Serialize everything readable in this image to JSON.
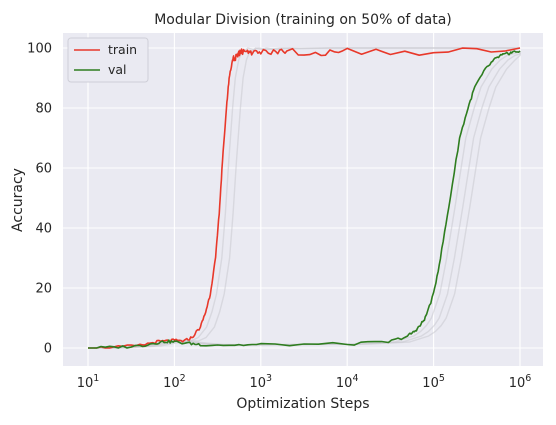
{
  "chart_data": {
    "type": "line",
    "title": "Modular Division (training on 50% of data)",
    "xlabel": "Optimization Steps",
    "ylabel": "Accuracy",
    "xscale": "log",
    "xlim": [
      10,
      1000000
    ],
    "ylim": [
      0,
      100
    ],
    "xticks": [
      {
        "value": 10,
        "base": "10",
        "exp": "1"
      },
      {
        "value": 100,
        "base": "10",
        "exp": "2"
      },
      {
        "value": 1000,
        "base": "10",
        "exp": "3"
      },
      {
        "value": 10000,
        "base": "10",
        "exp": "4"
      },
      {
        "value": 100000,
        "base": "10",
        "exp": "5"
      },
      {
        "value": 1000000,
        "base": "10",
        "exp": "6"
      }
    ],
    "yticks": [
      "0",
      "20",
      "40",
      "60",
      "80",
      "100"
    ],
    "grid": true,
    "legend_position": "top-left",
    "series": [
      {
        "name": "train",
        "color": "#e8382a",
        "x": [
          10,
          20,
          40,
          60,
          80,
          100,
          130,
          160,
          200,
          230,
          260,
          300,
          330,
          360,
          400,
          430,
          470,
          500,
          550,
          600,
          700,
          800,
          1000,
          1500,
          2000,
          5000,
          10000,
          100000,
          1000000
        ],
        "y": [
          0,
          0.2,
          0.8,
          2.0,
          2.3,
          2.5,
          2.3,
          3.5,
          7,
          12,
          18,
          30,
          45,
          62,
          80,
          90,
          96,
          98,
          99,
          100,
          99.5,
          100,
          99.5,
          100,
          99.8,
          100,
          100,
          100,
          100
        ]
      },
      {
        "name": "val",
        "color": "#2e7d1f",
        "x": [
          10,
          20,
          40,
          60,
          80,
          100,
          150,
          200,
          500,
          1000,
          10000,
          30000,
          50000,
          60000,
          70000,
          80000,
          100000,
          120000,
          150000,
          200000,
          250000,
          300000,
          400000,
          500000,
          600000,
          700000,
          800000,
          1000000
        ],
        "y": [
          0,
          0.2,
          0.7,
          1.7,
          2.2,
          2.0,
          1.5,
          1.2,
          1.0,
          1.1,
          1.3,
          2.0,
          4.0,
          5.5,
          7.5,
          10,
          18,
          30,
          47,
          70,
          80,
          87,
          93,
          96,
          97.5,
          98,
          98.5,
          99
        ]
      }
    ]
  }
}
